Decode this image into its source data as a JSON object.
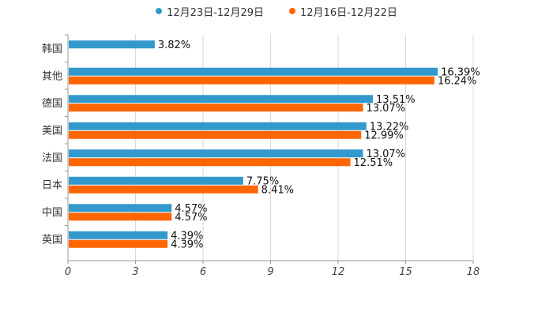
{
  "chart_data": {
    "type": "bar",
    "orientation": "horizontal",
    "title": "",
    "xlabel": "",
    "ylabel": "",
    "categories": [
      "韩国",
      "其他",
      "德国",
      "美国",
      "法国",
      "日本",
      "中国",
      "英国"
    ],
    "xlim": [
      0,
      18
    ],
    "xticks": [
      0,
      3,
      6,
      9,
      12,
      15,
      18
    ],
    "grid": true,
    "legend_position": "top-center",
    "series": [
      {
        "name": "12月23日-12月29日",
        "color": "#3399cc",
        "values": [
          3.82,
          16.39,
          13.51,
          13.22,
          13.07,
          7.75,
          4.57,
          4.39
        ],
        "labels": [
          "3.82%",
          "16.39%",
          "13.51%",
          "13.22%",
          "13.07%",
          "7.75%",
          "4.57%",
          "4.39%"
        ]
      },
      {
        "name": "12月16日-12月22日",
        "color": "#ff6600",
        "values": [
          null,
          16.24,
          13.07,
          12.99,
          12.51,
          8.41,
          4.57,
          4.39
        ],
        "labels": [
          "",
          "16.24%",
          "13.07%",
          "12.99%",
          "12.51%",
          "8.41%",
          "4.57%",
          "4.39%"
        ]
      }
    ]
  }
}
